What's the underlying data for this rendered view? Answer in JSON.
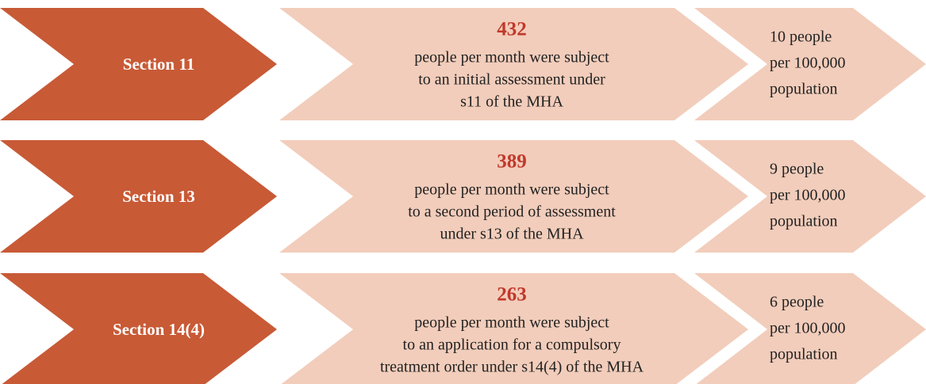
{
  "rows": [
    {
      "section": "Section 11",
      "count": 432,
      "description": [
        "people per month were subject",
        "to an initial assessment under",
        "s11 of the MHA"
      ],
      "rate": [
        "10 people",
        "per 100,000",
        "population"
      ]
    },
    {
      "section": "Section 13",
      "count": 389,
      "description": [
        "people per month were subject",
        "to a second period of assessment",
        "under s13 of the MHA"
      ],
      "rate": [
        "9 people",
        "per 100,000",
        "population"
      ]
    },
    {
      "section": "Section 14(4)",
      "count": 263,
      "description": [
        "people per month were subject",
        "to an application for a compulsory",
        "treatment order under s14(4) of the MHA"
      ],
      "rate": [
        "6 people",
        "per 100,000",
        "population"
      ]
    }
  ]
}
